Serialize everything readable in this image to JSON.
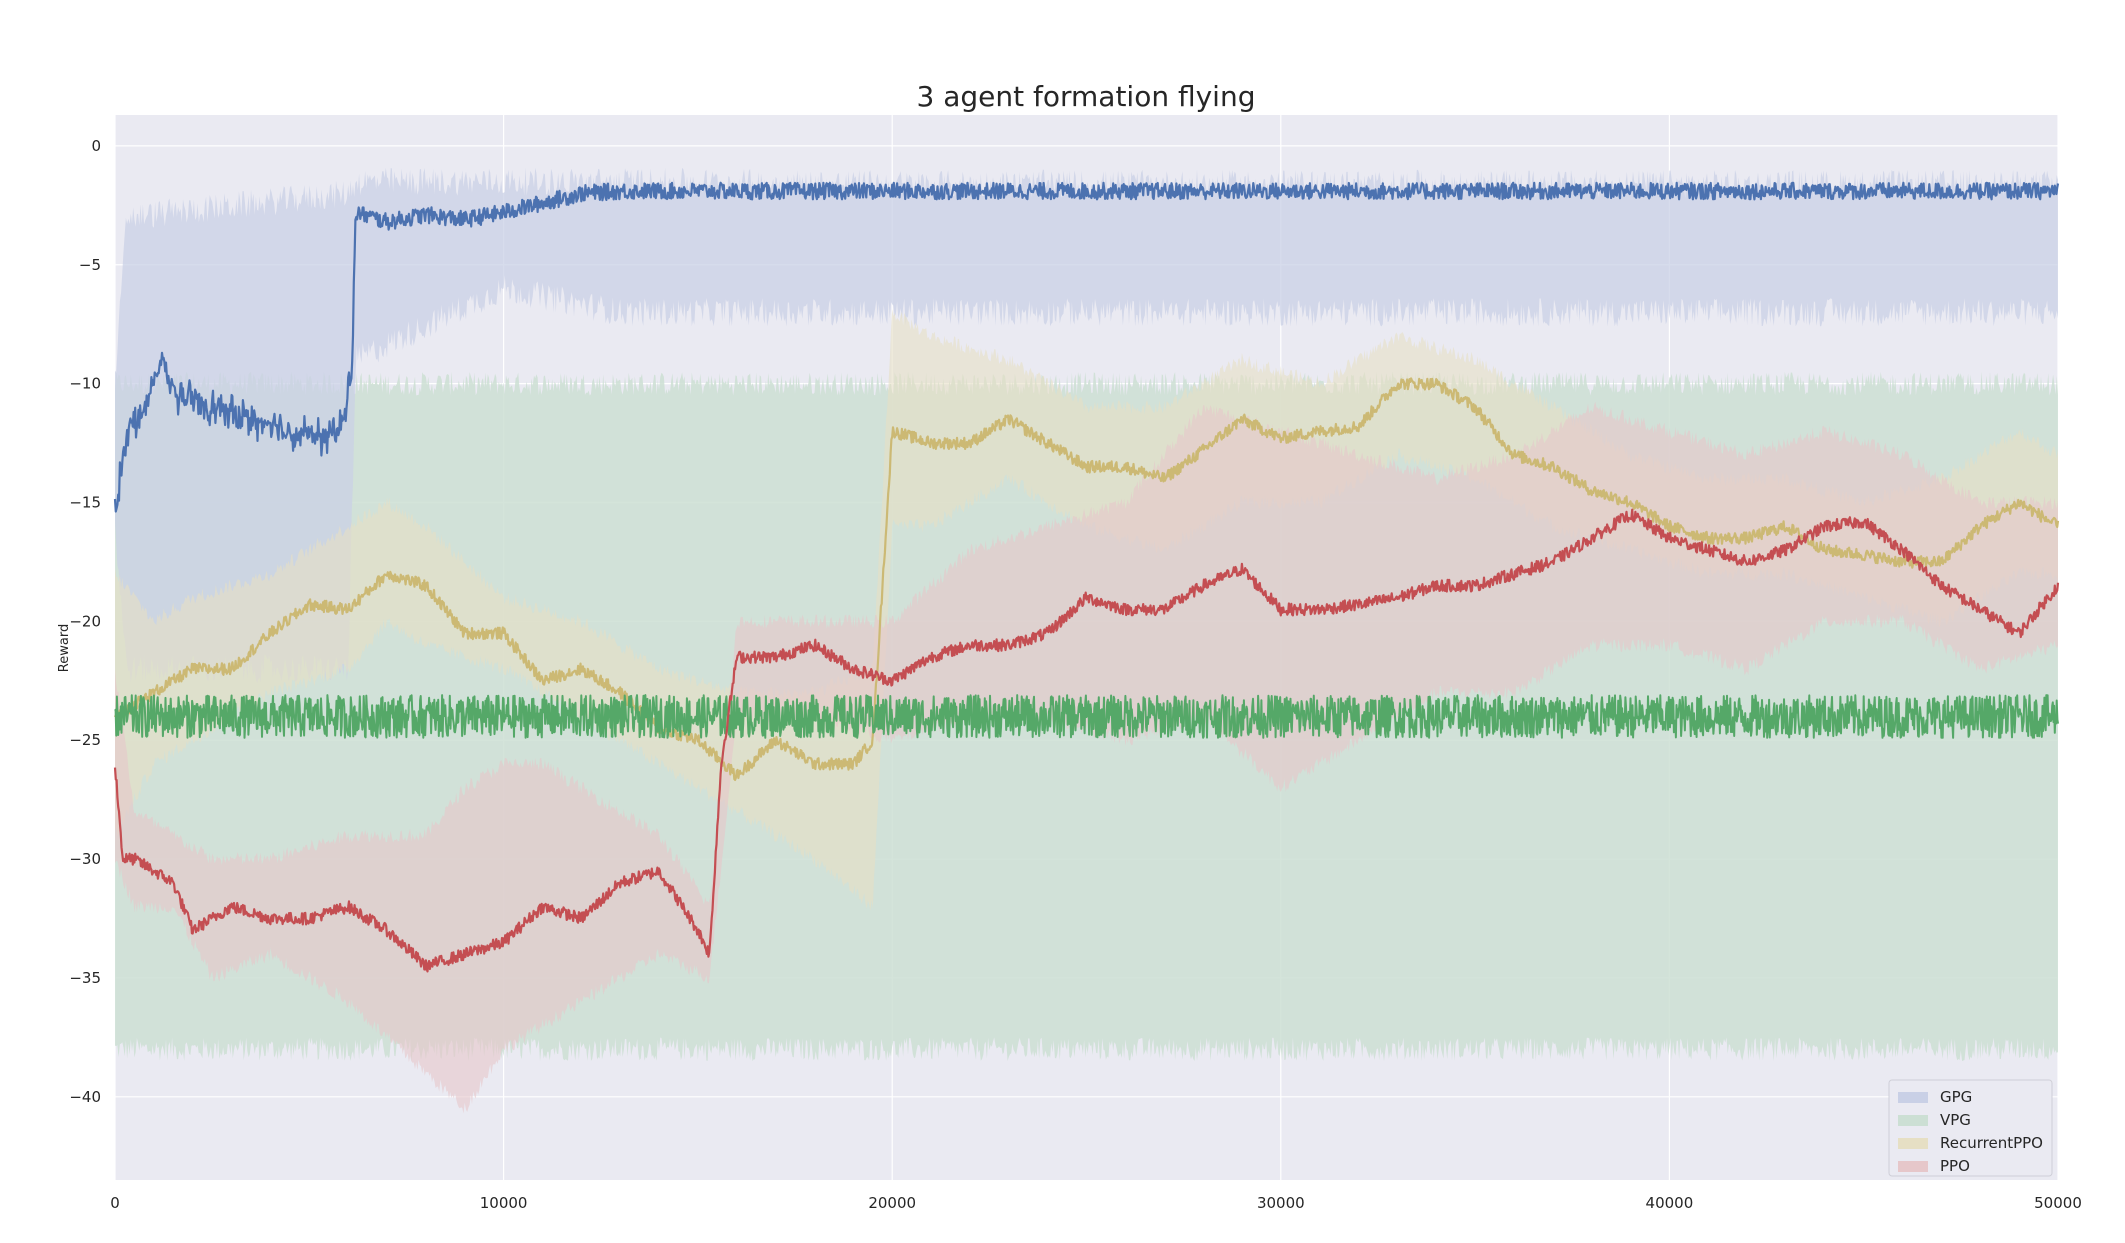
{
  "chart_data": {
    "type": "line",
    "title": "3 agent formation flying",
    "xlabel": "",
    "ylabel": "Reward",
    "xlim": [
      0,
      50000
    ],
    "ylim": [
      -43.5,
      1.3
    ],
    "x_ticks": [
      0,
      10000,
      20000,
      30000,
      40000,
      50000
    ],
    "y_ticks": [
      0,
      -5,
      -10,
      -15,
      -20,
      -25,
      -30,
      -35,
      -40
    ],
    "grid": true,
    "legend_position": "lower-right",
    "series": [
      {
        "name": "GPG",
        "color": "#4c72b0",
        "band_color": "#c9d0e6",
        "mean": [
          [
            0,
            -15.5
          ],
          [
            300,
            -12
          ],
          [
            800,
            -11
          ],
          [
            1200,
            -9
          ],
          [
            1600,
            -10.5
          ],
          [
            2500,
            -11
          ],
          [
            3500,
            -11.5
          ],
          [
            4500,
            -12
          ],
          [
            5500,
            -12.3
          ],
          [
            5900,
            -11.5
          ],
          [
            6100,
            -9
          ],
          [
            6200,
            -2.8
          ],
          [
            7000,
            -3.2
          ],
          [
            8000,
            -2.9
          ],
          [
            9000,
            -3.1
          ],
          [
            10000,
            -2.8
          ],
          [
            11000,
            -2.4
          ],
          [
            12000,
            -2.0
          ],
          [
            13000,
            -1.9
          ],
          [
            15000,
            -1.9
          ],
          [
            20000,
            -1.9
          ],
          [
            30000,
            -1.9
          ],
          [
            40000,
            -1.9
          ],
          [
            50000,
            -1.9
          ]
        ],
        "band": [
          [
            0,
            -16,
            -10
          ],
          [
            300,
            -22,
            -3
          ],
          [
            6000,
            -22,
            -2
          ],
          [
            6200,
            -9,
            -1.5
          ],
          [
            10000,
            -6,
            -1.5
          ],
          [
            13000,
            -7,
            -1.5
          ],
          [
            20000,
            -7,
            -1.6
          ],
          [
            30000,
            -7,
            -1.6
          ],
          [
            40000,
            -7,
            -1.6
          ],
          [
            50000,
            -7,
            -1.6
          ]
        ]
      },
      {
        "name": "VPG",
        "color": "#55a868",
        "band_color": "#ccdfd4",
        "mean": [
          [
            0,
            -24
          ],
          [
            500,
            -24
          ],
          [
            10000,
            -24
          ],
          [
            20000,
            -24
          ],
          [
            30000,
            -24
          ],
          [
            40000,
            -24
          ],
          [
            50000,
            -24
          ]
        ],
        "band": [
          [
            0,
            -38,
            -10
          ],
          [
            500,
            -38,
            -10
          ],
          [
            10000,
            -38,
            -10
          ],
          [
            20000,
            -38,
            -10
          ],
          [
            30000,
            -38,
            -10
          ],
          [
            40000,
            -38,
            -10
          ],
          [
            50000,
            -38,
            -10
          ]
        ]
      },
      {
        "name": "RecurrentPPO",
        "color": "#dd8452",
        "line_color": "#ccb974",
        "band_color": "#e6dfc4",
        "mean": [
          [
            0,
            -24
          ],
          [
            500,
            -23.5
          ],
          [
            1000,
            -23
          ],
          [
            2000,
            -22
          ],
          [
            3000,
            -22
          ],
          [
            4000,
            -20.5
          ],
          [
            5000,
            -19.3
          ],
          [
            6000,
            -19.5
          ],
          [
            7000,
            -18
          ],
          [
            8000,
            -18.5
          ],
          [
            9000,
            -20.5
          ],
          [
            10000,
            -20.5
          ],
          [
            11000,
            -22.5
          ],
          [
            12000,
            -22
          ],
          [
            13000,
            -23
          ],
          [
            14000,
            -24.5
          ],
          [
            15000,
            -25
          ],
          [
            16000,
            -26.5
          ],
          [
            17000,
            -25
          ],
          [
            18000,
            -26
          ],
          [
            19000,
            -26
          ],
          [
            19500,
            -25
          ],
          [
            20000,
            -12
          ],
          [
            21000,
            -12.5
          ],
          [
            22000,
            -12.5
          ],
          [
            23000,
            -11.5
          ],
          [
            24000,
            -12.5
          ],
          [
            25000,
            -13.5
          ],
          [
            26000,
            -13.5
          ],
          [
            27000,
            -14
          ],
          [
            28000,
            -12.8
          ],
          [
            29000,
            -11.5
          ],
          [
            30000,
            -12.3
          ],
          [
            31000,
            -12
          ],
          [
            32000,
            -11.8
          ],
          [
            33000,
            -10
          ],
          [
            34000,
            -10
          ],
          [
            35000,
            -11
          ],
          [
            36000,
            -13
          ],
          [
            37000,
            -13.5
          ],
          [
            38000,
            -14.5
          ],
          [
            39000,
            -15
          ],
          [
            40000,
            -16
          ],
          [
            41000,
            -16.5
          ],
          [
            42000,
            -16.5
          ],
          [
            43000,
            -16
          ],
          [
            44000,
            -17
          ],
          [
            45000,
            -17.2
          ],
          [
            46000,
            -17.5
          ],
          [
            47000,
            -17.5
          ],
          [
            48000,
            -16
          ],
          [
            49000,
            -15
          ],
          [
            50000,
            -16
          ]
        ],
        "band": [
          [
            0,
            -29,
            -18
          ],
          [
            1000,
            -26,
            -20
          ],
          [
            2000,
            -25,
            -19
          ],
          [
            4000,
            -23,
            -18
          ],
          [
            6000,
            -22,
            -16
          ],
          [
            7000,
            -20,
            -15
          ],
          [
            8000,
            -21,
            -16
          ],
          [
            10000,
            -22,
            -19
          ],
          [
            12000,
            -24,
            -20
          ],
          [
            14000,
            -26,
            -22
          ],
          [
            16000,
            -28,
            -23
          ],
          [
            18000,
            -30,
            -23
          ],
          [
            19500,
            -32,
            -22
          ],
          [
            20000,
            -16,
            -7
          ],
          [
            21000,
            -16,
            -8
          ],
          [
            23000,
            -14,
            -9
          ],
          [
            25000,
            -16,
            -11
          ],
          [
            27000,
            -17,
            -11
          ],
          [
            29000,
            -15,
            -9
          ],
          [
            31000,
            -15,
            -10
          ],
          [
            33000,
            -13,
            -8
          ],
          [
            35000,
            -14,
            -9
          ],
          [
            37000,
            -16,
            -11
          ],
          [
            39000,
            -17,
            -13
          ],
          [
            41000,
            -18,
            -14
          ],
          [
            43000,
            -18,
            -14
          ],
          [
            45000,
            -19,
            -15
          ],
          [
            47000,
            -20,
            -14
          ],
          [
            49000,
            -18,
            -12
          ],
          [
            50000,
            -18,
            -13
          ]
        ]
      },
      {
        "name": "PPO",
        "color": "#c44e52",
        "band_color": "#e6c7ca",
        "mean": [
          [
            0,
            -26
          ],
          [
            200,
            -30
          ],
          [
            500,
            -30
          ],
          [
            1000,
            -30.5
          ],
          [
            1500,
            -31
          ],
          [
            2000,
            -33
          ],
          [
            3000,
            -32
          ],
          [
            4000,
            -32.5
          ],
          [
            5000,
            -32.5
          ],
          [
            6000,
            -32
          ],
          [
            7000,
            -33
          ],
          [
            8000,
            -34.5
          ],
          [
            9000,
            -34
          ],
          [
            10000,
            -33.5
          ],
          [
            11000,
            -32
          ],
          [
            12000,
            -32.5
          ],
          [
            13000,
            -31
          ],
          [
            14000,
            -30.5
          ],
          [
            15000,
            -33
          ],
          [
            15300,
            -34
          ],
          [
            15600,
            -26
          ],
          [
            16000,
            -21.5
          ],
          [
            17000,
            -21.5
          ],
          [
            18000,
            -21
          ],
          [
            19000,
            -22
          ],
          [
            20000,
            -22.5
          ],
          [
            21000,
            -21.5
          ],
          [
            22000,
            -21
          ],
          [
            23000,
            -21
          ],
          [
            24000,
            -20.5
          ],
          [
            25000,
            -19
          ],
          [
            26000,
            -19.5
          ],
          [
            27000,
            -19.5
          ],
          [
            28000,
            -18.5
          ],
          [
            29000,
            -17.8
          ],
          [
            30000,
            -19.5
          ],
          [
            31000,
            -19.5
          ],
          [
            32000,
            -19.3
          ],
          [
            33000,
            -19
          ],
          [
            34000,
            -18.5
          ],
          [
            35000,
            -18.5
          ],
          [
            36000,
            -18
          ],
          [
            37000,
            -17.5
          ],
          [
            38000,
            -16.5
          ],
          [
            39000,
            -15.5
          ],
          [
            40000,
            -16.5
          ],
          [
            41000,
            -17
          ],
          [
            42000,
            -17.5
          ],
          [
            43000,
            -17
          ],
          [
            44000,
            -16
          ],
          [
            45000,
            -15.8
          ],
          [
            46000,
            -17
          ],
          [
            47000,
            -18.5
          ],
          [
            48000,
            -19.5
          ],
          [
            49000,
            -20.5
          ],
          [
            50000,
            -18.5
          ]
        ],
        "band": [
          [
            0,
            -30,
            -22
          ],
          [
            500,
            -32,
            -28
          ],
          [
            1500,
            -32,
            -29
          ],
          [
            2500,
            -35,
            -30
          ],
          [
            4000,
            -34,
            -30
          ],
          [
            6000,
            -36,
            -29
          ],
          [
            8000,
            -39,
            -29
          ],
          [
            9000,
            -40.5,
            -27
          ],
          [
            10000,
            -38,
            -26
          ],
          [
            11000,
            -37,
            -26
          ],
          [
            12000,
            -36,
            -27
          ],
          [
            14000,
            -34,
            -29
          ],
          [
            15300,
            -35,
            -32
          ],
          [
            16000,
            -24,
            -20
          ],
          [
            18000,
            -24,
            -20
          ],
          [
            20000,
            -25,
            -20
          ],
          [
            22000,
            -24,
            -17
          ],
          [
            24000,
            -24,
            -16
          ],
          [
            26000,
            -25,
            -15
          ],
          [
            28000,
            -24,
            -11
          ],
          [
            30000,
            -27,
            -12
          ],
          [
            32000,
            -25,
            -13
          ],
          [
            34000,
            -23,
            -14
          ],
          [
            36000,
            -23,
            -13
          ],
          [
            38000,
            -21,
            -11
          ],
          [
            40000,
            -21,
            -12
          ],
          [
            42000,
            -22,
            -13
          ],
          [
            44000,
            -20,
            -12
          ],
          [
            46000,
            -20,
            -13
          ],
          [
            48000,
            -22,
            -15
          ],
          [
            50000,
            -21,
            -15
          ]
        ]
      }
    ]
  }
}
